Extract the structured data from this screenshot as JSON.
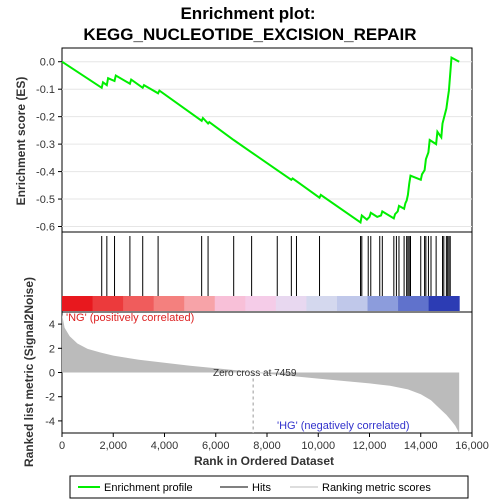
{
  "chart_data": {
    "type": "line",
    "title_line1": "Enrichment plot:",
    "title_line2": "KEGG_NUCLEOTIDE_EXCISION_REPAIR",
    "xlabel": "Rank in Ordered Dataset",
    "ylabel_top": "Enrichment score (ES)",
    "ylabel_bottom": "Ranked list metric (Signal2Noise)",
    "xlim": [
      0,
      16000
    ],
    "x_ticks": [
      0,
      2000,
      4000,
      6000,
      8000,
      10000,
      12000,
      14000,
      16000
    ],
    "x_tick_labels": [
      "0",
      "2,000",
      "4,000",
      "6,000",
      "8,000",
      "10,000",
      "12,000",
      "14,000",
      "16,000"
    ],
    "es_ylim": [
      -0.62,
      0.05
    ],
    "es_ticks": [
      0.0,
      -0.1,
      -0.2,
      -0.3,
      -0.4,
      -0.5,
      -0.6
    ],
    "es_tick_labels": [
      "0.0",
      "-0.1",
      "-0.2",
      "-0.3",
      "-0.4",
      "-0.5",
      "-0.6"
    ],
    "metric_ylim": [
      -5,
      5
    ],
    "metric_ticks": [
      4,
      2,
      0,
      -2,
      -4
    ],
    "metric_tick_labels": [
      "4",
      "2",
      "0",
      "-2",
      "-4"
    ],
    "es_profile": {
      "x": [
        0,
        1550,
        1600,
        1750,
        1800,
        2050,
        2100,
        2650,
        2700,
        3150,
        3200,
        3750,
        3800,
        5450,
        5500,
        5700,
        5750,
        6700,
        7400,
        8400,
        8950,
        9000,
        9150,
        10050,
        10100,
        11650,
        11700,
        11900,
        12000,
        12050,
        12300,
        12450,
        12500,
        12950,
        13000,
        13100,
        13150,
        13350,
        13400,
        13450,
        13500,
        13550,
        13600,
        14000,
        14050,
        14150,
        14200,
        14300,
        14350,
        14600,
        14650,
        14800,
        14850,
        15000,
        15050,
        15100,
        15150,
        15200,
        15500
      ],
      "y": [
        0.0,
        -0.095,
        -0.075,
        -0.085,
        -0.06,
        -0.07,
        -0.05,
        -0.08,
        -0.065,
        -0.095,
        -0.085,
        -0.115,
        -0.105,
        -0.215,
        -0.205,
        -0.225,
        -0.22,
        -0.285,
        -0.33,
        -0.395,
        -0.43,
        -0.425,
        -0.435,
        -0.495,
        -0.485,
        -0.585,
        -0.56,
        -0.575,
        -0.565,
        -0.55,
        -0.565,
        -0.56,
        -0.545,
        -0.57,
        -0.555,
        -0.545,
        -0.525,
        -0.535,
        -0.515,
        -0.505,
        -0.485,
        -0.445,
        -0.415,
        -0.43,
        -0.41,
        -0.395,
        -0.355,
        -0.33,
        -0.285,
        -0.3,
        -0.255,
        -0.275,
        -0.225,
        -0.17,
        -0.135,
        -0.105,
        -0.045,
        0.015,
        0.0
      ]
    },
    "hits": [
      1550,
      1750,
      2050,
      2650,
      3150,
      3750,
      5450,
      5700,
      6700,
      7400,
      8400,
      8950,
      9150,
      10050,
      11650,
      11700,
      11950,
      12050,
      12400,
      12500,
      12950,
      13050,
      13150,
      13350,
      13450,
      13500,
      13550,
      13600,
      14000,
      14150,
      14200,
      14300,
      14400,
      14600,
      14850,
      14900,
      15000,
      15050,
      15100,
      15150
    ],
    "metric_curve": {
      "x": [
        0,
        100,
        300,
        600,
        1000,
        1500,
        2000,
        3000,
        4000,
        5000,
        6000,
        7000,
        7459,
        8000,
        9000,
        10000,
        11000,
        12000,
        12800,
        13500,
        14000,
        14400,
        14700,
        15000,
        15200,
        15350,
        15450,
        15500
      ],
      "y": [
        4.8,
        3.7,
        3.0,
        2.4,
        1.95,
        1.65,
        1.4,
        1.05,
        0.8,
        0.55,
        0.35,
        0.15,
        0.0,
        -0.1,
        -0.3,
        -0.5,
        -0.7,
        -0.9,
        -1.1,
        -1.4,
        -1.8,
        -2.3,
        -2.9,
        -3.5,
        -4.0,
        -4.4,
        -4.8,
        -5.0
      ]
    },
    "zero_cross_label": "Zero cross at 7459",
    "zero_cross_x": 7459,
    "pos_label": "'NG' (positively correlated)",
    "neg_label": "'HG' (negatively correlated)",
    "heatmap_colors": [
      "#e8181e",
      "#ec3a3c",
      "#f05c5c",
      "#f4807e",
      "#f7a3a8",
      "#f8c0d8",
      "#f5cce8",
      "#e8d8f0",
      "#d4d8ee",
      "#c0c8ea",
      "#8c9cdc",
      "#6072cc",
      "#2c3cb4"
    ],
    "legend": {
      "items": [
        {
          "label": "Enrichment profile",
          "color": "#00ee00"
        },
        {
          "label": "Hits",
          "color": "#000000"
        },
        {
          "label": "Ranking metric scores",
          "color": "#bbbbbb"
        }
      ]
    }
  }
}
